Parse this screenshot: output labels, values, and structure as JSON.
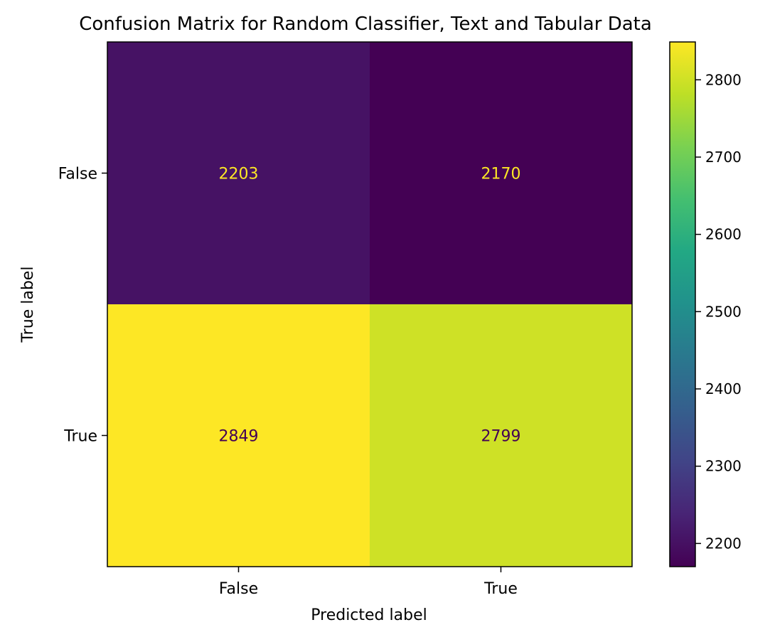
{
  "chart_data": {
    "type": "heatmap",
    "title": "Confusion Matrix for Random Classifier, Text and Tabular Data",
    "xlabel": "Predicted label",
    "ylabel": "True label",
    "x_categories": [
      "False",
      "True"
    ],
    "y_categories": [
      "False",
      "True"
    ],
    "matrix": [
      [
        2203,
        2170
      ],
      [
        2849,
        2799
      ]
    ],
    "colormap": "viridis",
    "colorbar": {
      "min": 2170,
      "max": 2849,
      "ticks": [
        2200,
        2300,
        2400,
        2500,
        2600,
        2700,
        2800
      ]
    },
    "grid": false
  }
}
